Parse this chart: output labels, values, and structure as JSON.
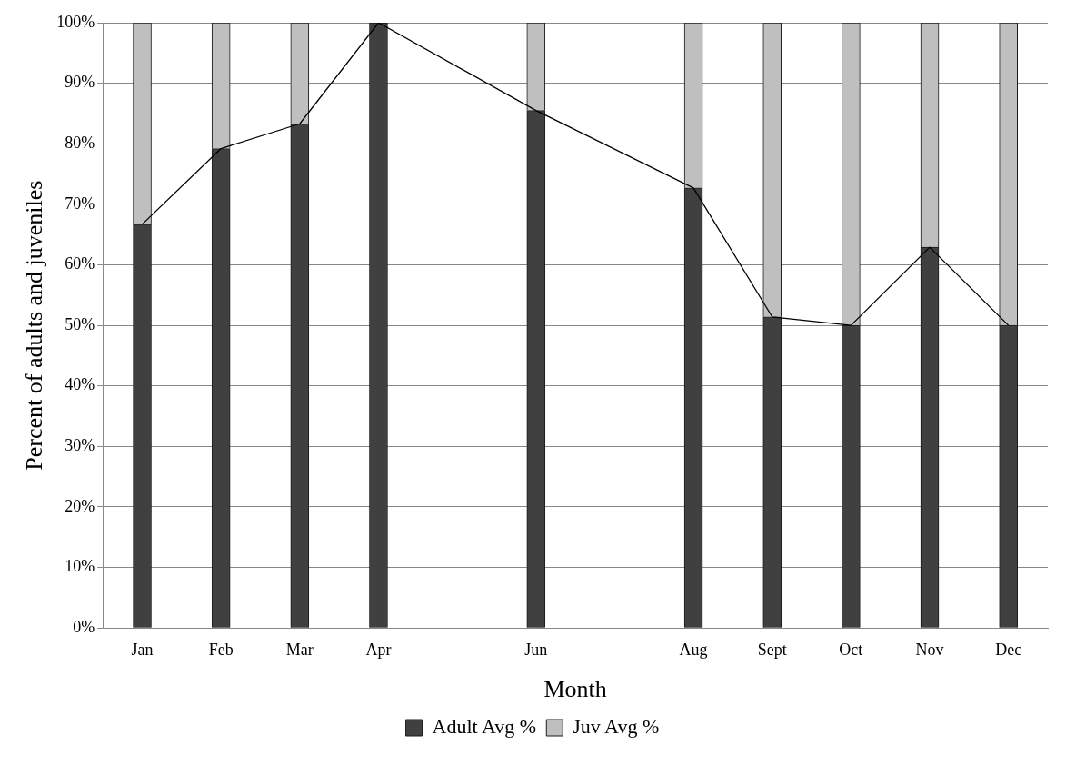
{
  "chart_data": {
    "type": "bar",
    "stacked": true,
    "xlabel": "Month",
    "ylabel": "Percent of adults and juveniles",
    "categories": [
      "Jan",
      "Feb",
      "Mar",
      "Apr",
      null,
      "Jun",
      null,
      "Aug",
      "Sept",
      "Oct",
      "Nov",
      "Dec"
    ],
    "series": [
      {
        "name": "Adult Avg %",
        "color": "#404040",
        "values": [
          66.7,
          79.2,
          83.3,
          100,
          null,
          85.5,
          null,
          72.7,
          51.4,
          50,
          62.9,
          50
        ]
      },
      {
        "name": "Juv Avg %",
        "color": "#bfbfbf",
        "values": [
          33.3,
          20.8,
          16.7,
          0,
          null,
          14.5,
          null,
          27.3,
          48.6,
          50,
          37.1,
          50
        ]
      },
      {
        "type": "line",
        "color": "#000000",
        "marker": "none",
        "values": [
          66.7,
          79.2,
          83.3,
          100,
          null,
          85.5,
          null,
          72.7,
          51.4,
          50,
          62.9,
          50
        ]
      }
    ],
    "ylim": [
      0,
      100
    ],
    "yticks": [
      {
        "value": 0,
        "label": "0%"
      },
      {
        "value": 10,
        "label": "10%"
      },
      {
        "value": 20,
        "label": "20%"
      },
      {
        "value": 30,
        "label": "30%"
      },
      {
        "value": 40,
        "label": "40%"
      },
      {
        "value": 50,
        "label": "50%"
      },
      {
        "value": 60,
        "label": "60%"
      },
      {
        "value": 70,
        "label": "70%"
      },
      {
        "value": 80,
        "label": "80%"
      },
      {
        "value": 90,
        "label": "90%"
      },
      {
        "value": 100,
        "label": "100%"
      }
    ],
    "grid": "y",
    "legend": "bottom"
  }
}
